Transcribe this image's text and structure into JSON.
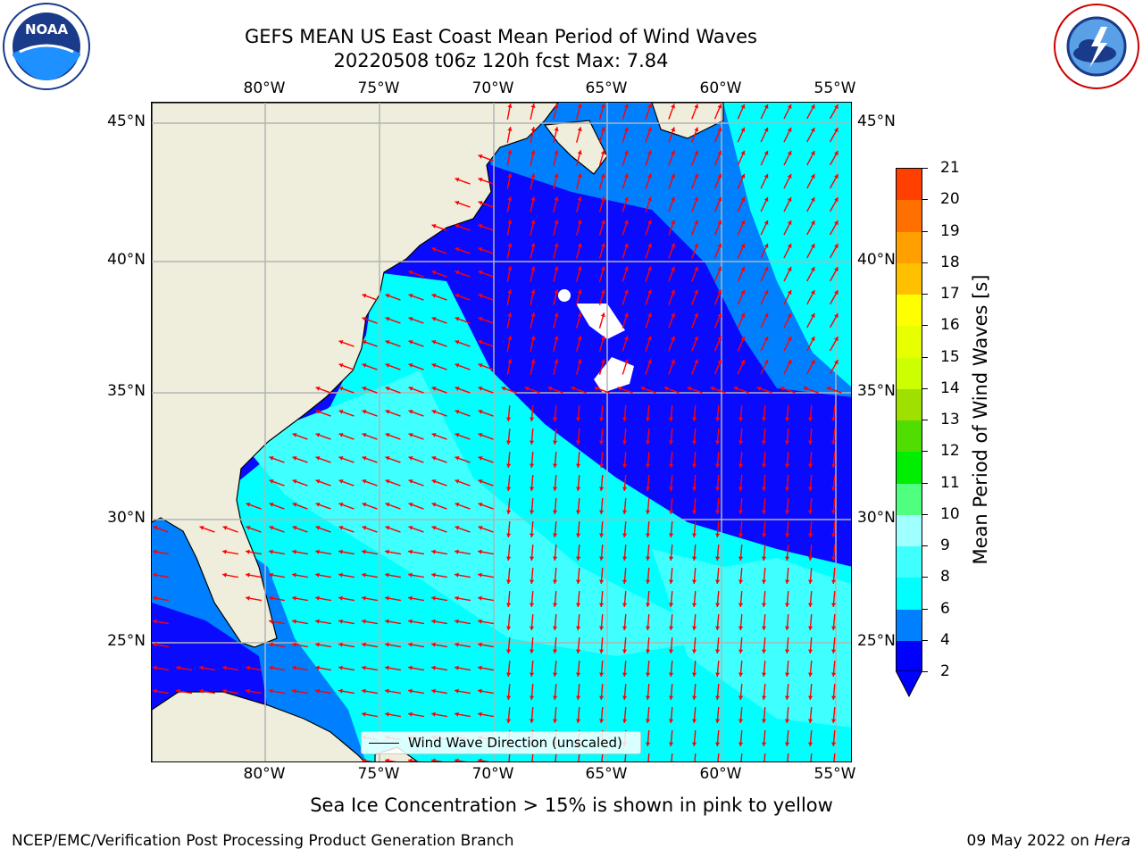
{
  "title_line1": "GEFS MEAN US East Coast Mean Period of Wind Waves",
  "title_line2": "20220508 t06z 120h fcst   Max: 7.84",
  "logos": {
    "left": {
      "name": "noaa-logo",
      "text": "NOAA",
      "ring_text": "NATIONAL OCEANIC AND ATMOSPHERIC ADMINISTRATION · U.S. DEPARTMENT OF COMMERCE"
    },
    "right": {
      "name": "nws-logo",
      "ring_text": "NATIONAL WEATHER SERVICE"
    }
  },
  "map": {
    "lon_ticks": [
      "80°W",
      "75°W",
      "70°W",
      "65°W",
      "60°W",
      "55°W"
    ],
    "lat_ticks": [
      "45°N",
      "40°N",
      "35°N",
      "30°N",
      "25°N"
    ],
    "legend_label": "Wind Wave Direction (unscaled)",
    "land_color": "#efeedc",
    "arrow_color": "#ff0000"
  },
  "colorbar": {
    "label": "Mean Period of Wind Waves [s]",
    "ticks": [
      "2",
      "4",
      "6",
      "8",
      "9",
      "10",
      "11",
      "12",
      "13",
      "14",
      "15",
      "16",
      "17",
      "18",
      "19",
      "20",
      "21"
    ],
    "colors": [
      "#0000ff",
      "#0080ff",
      "#00ffff",
      "#40ffff",
      "#a0ffff",
      "#50ff80",
      "#00ee00",
      "#50dd00",
      "#a0e000",
      "#ccff00",
      "#e8ff00",
      "#ffff00",
      "#ffc000",
      "#ffa000",
      "#ff7000",
      "#ff4000",
      "#ff0000"
    ],
    "extend_color": "#0000ff"
  },
  "subtitle": "Sea Ice Concentration > 15% is shown in pink to yellow",
  "footer": {
    "left": "NCEP/EMC/Verification Post Processing Product Generation Branch",
    "date": "09 May 2022 on ",
    "host": "Hera"
  }
}
